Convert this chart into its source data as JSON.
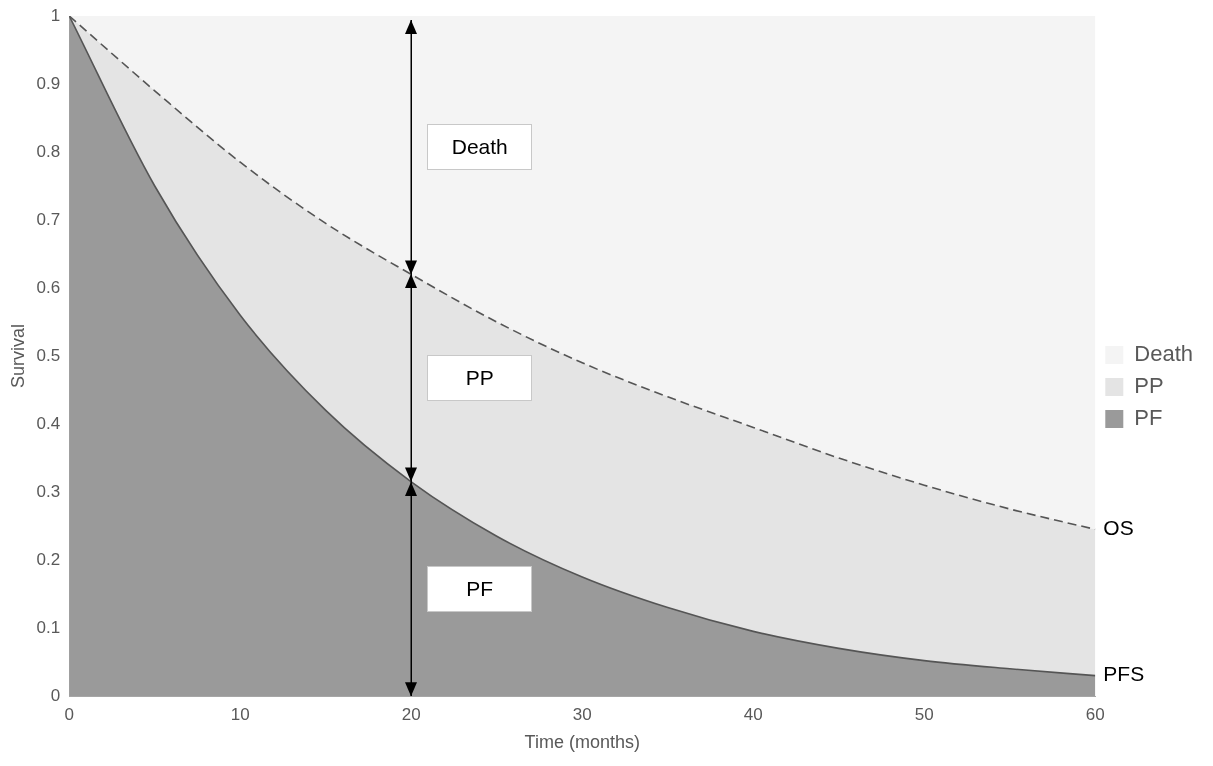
{
  "chart_data": {
    "type": "area",
    "stacked": true,
    "xlabel": "Time (months)",
    "ylabel": "Survival",
    "x": [
      0,
      5,
      10,
      15,
      20,
      25,
      30,
      35,
      40,
      45,
      50,
      55,
      60
    ],
    "series": [
      {
        "name": "PF",
        "color": "#9a9a9a",
        "line_style": "solid",
        "values": [
          1,
          0.75,
          0.56,
          0.42,
          0.315,
          0.235,
          0.175,
          0.13,
          0.095,
          0.07,
          0.052,
          0.04,
          0.03
        ]
      },
      {
        "name": "PP",
        "color": "#e4e4e4",
        "line_style": "dashed",
        "values": [
          0,
          0.14,
          0.225,
          0.275,
          0.305,
          0.315,
          0.315,
          0.31,
          0.3,
          0.28,
          0.258,
          0.235,
          0.215
        ]
      },
      {
        "name": "Death",
        "color": "#f4f4f4",
        "values": [
          0,
          0.11,
          0.215,
          0.305,
          0.38,
          0.45,
          0.51,
          0.56,
          0.605,
          0.65,
          0.69,
          0.725,
          0.755
        ]
      }
    ],
    "xlim": [
      0,
      60
    ],
    "xticks": [
      0,
      10,
      20,
      30,
      40,
      50,
      60
    ],
    "ylim": [
      0,
      1
    ],
    "yticks": [
      0,
      0.1,
      0.2,
      0.3,
      0.4,
      0.5,
      0.6,
      0.7,
      0.8,
      0.9,
      1
    ],
    "ref_lines": [
      {
        "axis": "x",
        "value": 20,
        "color": "#000000"
      }
    ],
    "grid": false,
    "legend": "right",
    "marker": "none",
    "annotations": [
      "Death",
      "PP",
      "PF",
      {
        "text": "OS",
        "x": 60,
        "y": 0.245
      },
      {
        "text": "PFS",
        "x": 60,
        "y": 0.03
      }
    ]
  }
}
